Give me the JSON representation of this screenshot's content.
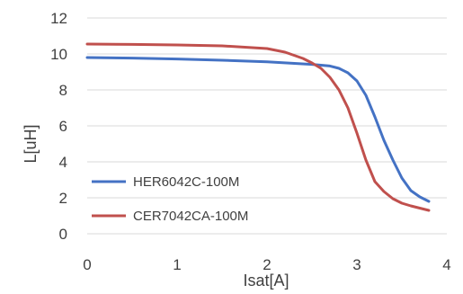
{
  "chart_data": {
    "type": "line",
    "title": "",
    "xlabel": "Isat[A]",
    "ylabel": "L[uH]",
    "xlim": [
      0,
      4
    ],
    "ylim": [
      0,
      12
    ],
    "xticks": [
      0,
      1,
      2,
      3,
      4
    ],
    "yticks": [
      0,
      2,
      4,
      6,
      8,
      10,
      12
    ],
    "grid": "horizontal",
    "legend_position": "bottom-left",
    "series": [
      {
        "name": "HER6042C-100M",
        "color": "#4472C4",
        "x": [
          0,
          0.5,
          1,
          1.5,
          2,
          2.5,
          2.7,
          2.8,
          2.9,
          3.0,
          3.1,
          3.2,
          3.3,
          3.4,
          3.5,
          3.6,
          3.7,
          3.8
        ],
        "y": [
          9.8,
          9.77,
          9.72,
          9.65,
          9.56,
          9.42,
          9.33,
          9.2,
          8.95,
          8.5,
          7.7,
          6.5,
          5.2,
          4.1,
          3.1,
          2.4,
          2.05,
          1.8
        ]
      },
      {
        "name": "CER7042CA-100M",
        "color": "#C0504D",
        "x": [
          0,
          0.5,
          1,
          1.5,
          2,
          2.2,
          2.4,
          2.5,
          2.6,
          2.7,
          2.8,
          2.9,
          3.0,
          3.1,
          3.2,
          3.3,
          3.4,
          3.5,
          3.6,
          3.8
        ],
        "y": [
          10.55,
          10.53,
          10.5,
          10.45,
          10.3,
          10.1,
          9.75,
          9.5,
          9.2,
          8.7,
          8.0,
          7.0,
          5.6,
          4.1,
          2.9,
          2.35,
          1.95,
          1.7,
          1.55,
          1.3
        ]
      }
    ]
  }
}
